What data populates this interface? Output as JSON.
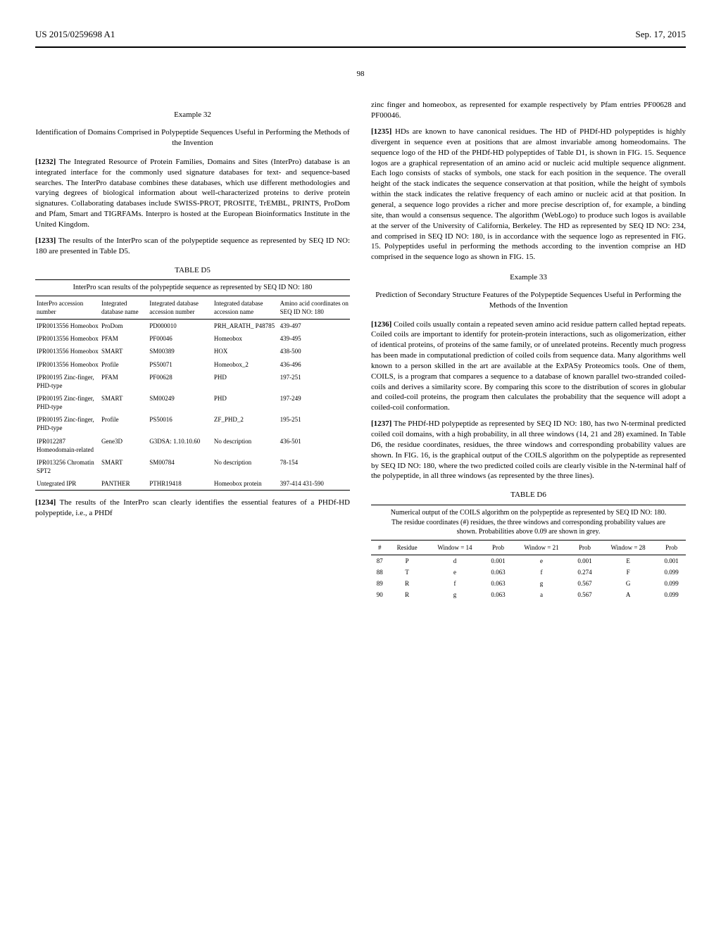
{
  "header": {
    "left": "US 2015/0259698 A1",
    "right": "Sep. 17, 2015"
  },
  "page_number": "98",
  "left_column": {
    "example32_heading": "Example 32",
    "example32_title": "Identification of Domains Comprised in Polypeptide Sequences Useful in Performing the Methods of the Invention",
    "para1232_num": "[1232]",
    "para1232": "The Integrated Resource of Protein Families, Domains and Sites (InterPro) database is an integrated interface for the commonly used signature databases for text- and sequence-based searches. The InterPro database combines these databases, which use different methodologies and varying degrees of biological information about well-characterized proteins to derive protein signatures. Collaborating databases include SWISS-PROT, PROSITE, TrEMBL, PRINTS, ProDom and Pfam, Smart and TIGRFAMs. Interpro is hosted at the European Bioinformatics Institute in the United Kingdom.",
    "para1233_num": "[1233]",
    "para1233": "The results of the InterPro scan of the polypeptide sequence as represented by SEQ ID NO: 180 are presented in Table D5.",
    "table_d5_heading": "TABLE D5",
    "table_d5_caption": "InterPro scan results of the polypeptide sequence as represented by SEQ ID NO: 180",
    "table_d5": {
      "columns": [
        "InterPro accession number",
        "Integrated database name",
        "Integrated database accession number",
        "Integrated database accession name",
        "Amino acid coordinates on SEQ ID NO: 180"
      ],
      "rows": [
        [
          "IPR0013556 Homeobox",
          "ProDom",
          "PD000010",
          "PRH_ARATH_ P48785",
          "439-497"
        ],
        [
          "IPR0013556 Homeobox",
          "PFAM",
          "PF00046",
          "Homeobox",
          "439-495"
        ],
        [
          "IPR0013556 Homeobox",
          "SMART",
          "SM00389",
          "HOX",
          "438-500"
        ],
        [
          "IPR0013556 Homeobox",
          "Profile",
          "PS50071",
          "Homeobox_2",
          "436-496"
        ],
        [
          "IPR00195 Zinc-finger, PHD-type",
          "PFAM",
          "PF00628",
          "PHD",
          "197-251"
        ],
        [
          "IPR00195 Zinc-finger, PHD-type",
          "SMART",
          "SM00249",
          "PHD",
          "197-249"
        ],
        [
          "IPR00195 Zinc-finger, PHD-type",
          "Profile",
          "PS50016",
          "ZF_PHD_2",
          "195-251"
        ],
        [
          "IPR012287 Homeodomain-related",
          "Gene3D",
          "G3DSA: 1.10.10.60",
          "No description",
          "436-501"
        ],
        [
          "IPR013256 Chromatin SPT2",
          "SMART",
          "SM00784",
          "No description",
          "78-154"
        ],
        [
          "Untegrated IPR",
          "PANTHER",
          "PTHR19418",
          "Homeobox protein",
          "397-414 431-590"
        ]
      ]
    },
    "para1234_num": "[1234]",
    "para1234": "The results of the InterPro scan clearly identifies the essential features of a PHDf-HD polypeptide, i.e., a PHDf"
  },
  "right_column": {
    "intro": "zinc finger and homeobox, as represented for example respectively by Pfam entries PF00628 and PF00046.",
    "para1235_num": "[1235]",
    "para1235": "HDs are known to have canonical residues. The HD of PHDf-HD polypeptides is highly divergent in sequence even at positions that are almost invariable among homeodomains. The sequence logo of the HD of the PHDf-HD polypeptides of Table D1, is shown in FIG. 15. Sequence logos are a graphical representation of an amino acid or nucleic acid multiple sequence alignment. Each logo consists of stacks of symbols, one stack for each position in the sequence. The overall height of the stack indicates the sequence conservation at that position, while the height of symbols within the stack indicates the relative frequency of each amino or nucleic acid at that position. In general, a sequence logo provides a richer and more precise description of, for example, a binding site, than would a consensus sequence. The algorithm (WebLogo) to produce such logos is available at the server of the University of California, Berkeley. The HD as represented by SEQ ID NO: 234, and comprised in SEQ ID NO: 180, is in accordance with the sequence logo as represented in FIG. 15. Polypeptides useful in performing the methods according to the invention comprise an HD comprised in the sequence logo as shown in FIG. 15.",
    "example33_heading": "Example 33",
    "example33_title": "Prediction of Secondary Structure Features of the Polypeptide Sequences Useful in Performing the Methods of the Invention",
    "para1236_num": "[1236]",
    "para1236": "Coiled coils usually contain a repeated seven amino acid residue pattern called heptad repeats. Coiled coils are important to identify for protein-protein interactions, such as oligomerization, either of identical proteins, of proteins of the same family, or of unrelated proteins. Recently much progress has been made in computational prediction of coiled coils from sequence data. Many algorithms well known to a person skilled in the art are available at the ExPASy Proteomics tools. One of them, COILS, is a program that compares a sequence to a database of known parallel two-stranded coiled-coils and derives a similarity score. By comparing this score to the distribution of scores in globular and coiled-coil proteins, the program then calculates the probability that the sequence will adopt a coiled-coil conformation.",
    "para1237_num": "[1237]",
    "para1237": "The PHDf-HD polypeptide as represented by SEQ ID NO: 180, has two N-terminal predicted coiled coil domains, with a high probability, in all three windows (14, 21 and 28) examined. In Table D6, the residue coordinates, residues, the three windows and corresponding probability values are shown. In FIG. 16, is the graphical output of the COILS algorithm on the polypeptide as represented by SEQ ID NO: 180, where the two predicted coiled coils are clearly visible in the N-terminal half of the polypeptide, in all three windows (as represented by the three lines).",
    "table_d6_heading": "TABLE D6",
    "table_d6_caption": "Numerical output of the COILS algorithm on the polypeptide as represented by SEQ ID NO: 180. The residue coordinates (#) residues, the three windows and corresponding probability values are shown. Probabilities above 0.09 are shown in grey.",
    "table_d6": {
      "columns": [
        "#",
        "Residue",
        "Window = 14",
        "Prob",
        "Window = 21",
        "Prob",
        "Window = 28",
        "Prob"
      ],
      "rows": [
        [
          "87",
          "P",
          "d",
          "0.001",
          "e",
          "0.001",
          "E",
          "0.001"
        ],
        [
          "88",
          "T",
          "e",
          "0.063",
          "f",
          "0.274",
          "F",
          "0.099"
        ],
        [
          "89",
          "R",
          "f",
          "0.063",
          "g",
          "0.567",
          "G",
          "0.099"
        ],
        [
          "90",
          "R",
          "g",
          "0.063",
          "a",
          "0.567",
          "A",
          "0.099"
        ]
      ]
    }
  }
}
